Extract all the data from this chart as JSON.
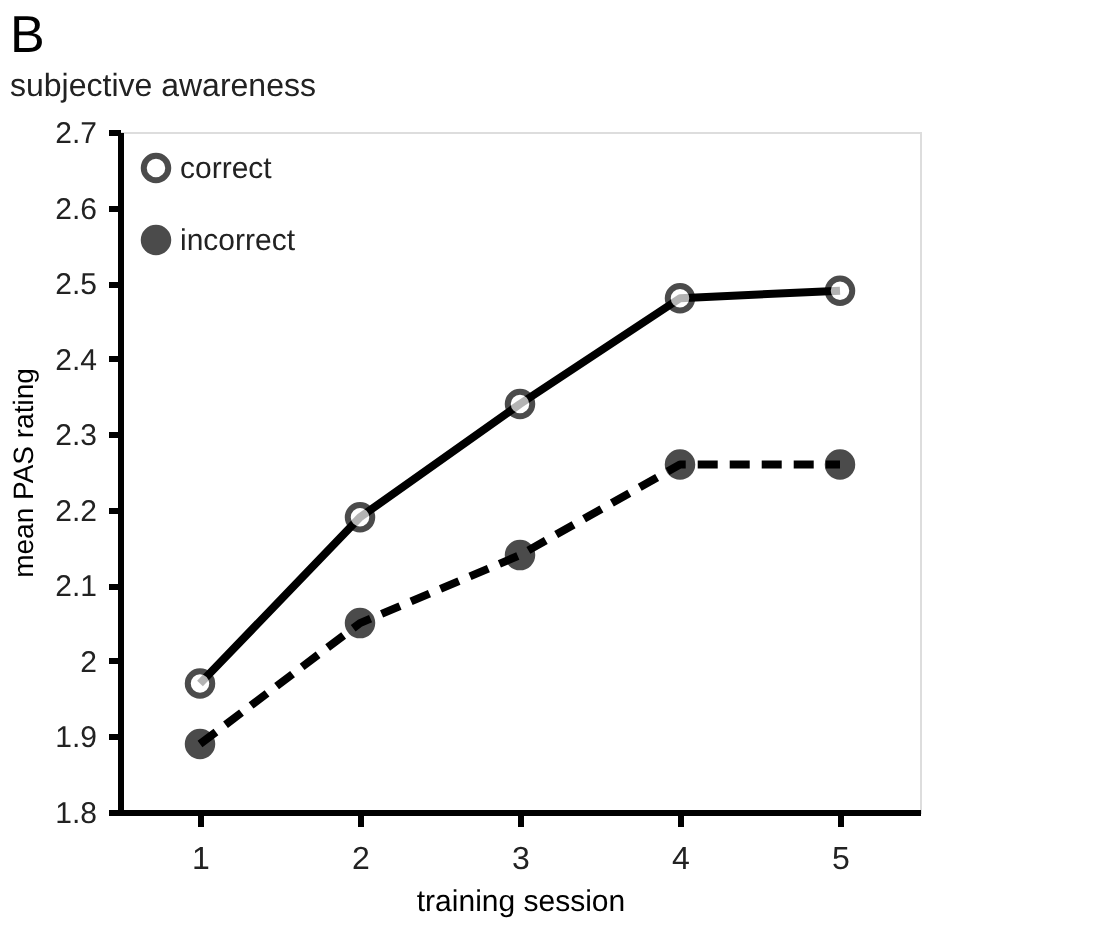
{
  "chart_data": {
    "type": "line",
    "title": "B",
    "subtitle": "subjective awareness",
    "xlabel": "training session",
    "ylabel": "mean PAS rating",
    "categories": [
      "1",
      "2",
      "3",
      "4",
      "5"
    ],
    "series": [
      {
        "name": "correct",
        "color": "#000000",
        "line_style": "solid",
        "values": [
          1.97,
          2.19,
          2.34,
          2.48,
          2.49
        ]
      },
      {
        "name": "incorrect",
        "color": "#000000",
        "line_style": "dashed",
        "values": [
          1.89,
          2.05,
          2.14,
          2.26,
          2.26
        ]
      }
    ],
    "ylim": [
      1.8,
      2.7
    ],
    "yticks": [
      1.8,
      1.9,
      2,
      2.1,
      2.2,
      2.3,
      2.4,
      2.5,
      2.6,
      2.7
    ],
    "marker": "circle",
    "grid": false,
    "legend": "top left"
  }
}
